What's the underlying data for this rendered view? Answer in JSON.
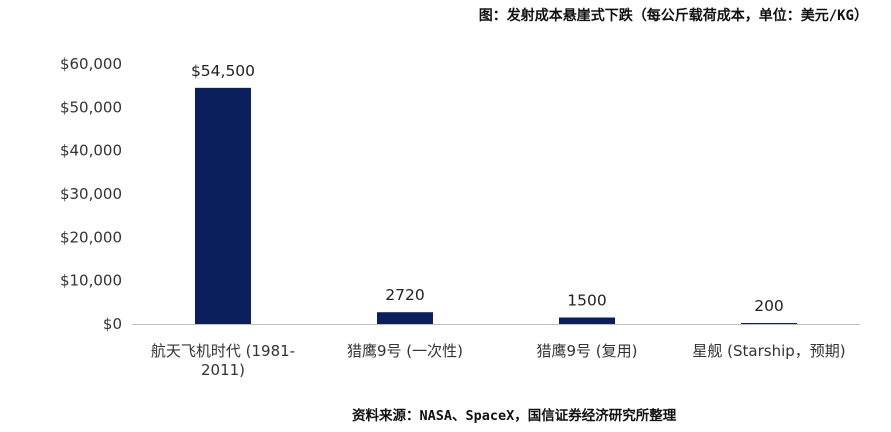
{
  "chart_data": {
    "type": "bar",
    "title": "图：发射成本悬崖式下跌（每公斤载荷成本，单位：美元/KG）",
    "source": "资料来源：NASA、SpaceX，国信证券经济研究所整理",
    "categories": [
      [
        "航天飞机时代 (1981-",
        "2011)"
      ],
      [
        "猎鹰9号 (一次性)"
      ],
      [
        "猎鹰9号 (复用)"
      ],
      [
        "星舰 (Starship，预期)"
      ]
    ],
    "values": [
      54500,
      2720,
      1500,
      200
    ],
    "data_labels": [
      "$54,500",
      "2720",
      "1500",
      "200"
    ],
    "ylim": [
      0,
      60000
    ],
    "yticks": [
      0,
      10000,
      20000,
      30000,
      40000,
      50000,
      60000
    ],
    "ytick_labels": [
      "$0",
      "$10,000",
      "$20,000",
      "$30,000",
      "$40,000",
      "$50,000",
      "$60,000"
    ],
    "bar_color": "#0a1f5c",
    "grid": false,
    "legend": "none"
  }
}
